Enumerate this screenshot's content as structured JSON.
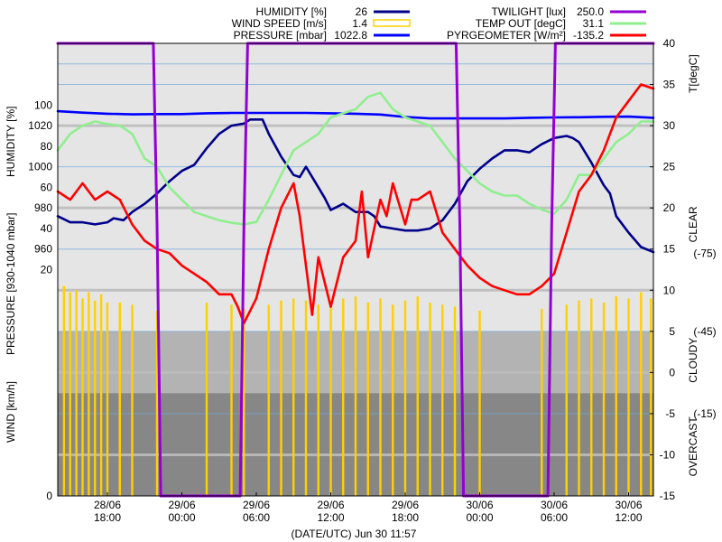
{
  "chart_data": {
    "type": "line",
    "legend": [
      {
        "label": "HUMIDITY [%]",
        "value": "26",
        "color": "#00008b",
        "style": "line"
      },
      {
        "label": "WIND SPEED [m/s]",
        "value": "1.4",
        "color": "#ffd000",
        "style": "box"
      },
      {
        "label": "PRESSURE [mbar]",
        "value": "1022.8",
        "color": "#0000ff",
        "style": "line"
      },
      {
        "label": "TWILIGHT [lux]",
        "value": "250.0",
        "color": "#9400d3",
        "style": "line"
      },
      {
        "label": "TEMP OUT [degC]",
        "value": "31.1",
        "color": "#90ee90",
        "style": "line"
      },
      {
        "label": "PYRGEOMETER [W/m²]",
        "value": "-135.2",
        "color": "#ff0000",
        "style": "line"
      }
    ],
    "left_axis_labels": {
      "humidity": "HUMIDITY [%]",
      "pressure": "PRESSURE [930-1040 mbar]",
      "wind": "WIND [km/h]"
    },
    "left_ticks": [
      {
        "label": "100",
        "row": 1.5
      },
      {
        "label": "1020",
        "row": 2
      },
      {
        "label": "80",
        "row": 2.5
      },
      {
        "label": "1000",
        "row": 3
      },
      {
        "label": "60",
        "row": 3.5
      },
      {
        "label": "980",
        "row": 4
      },
      {
        "label": "40",
        "row": 4.5
      },
      {
        "label": "960",
        "row": 5
      },
      {
        "label": "20",
        "row": 5.5
      },
      {
        "label": "0",
        "row": 6.5
      }
    ],
    "right_axis_label": "T[degC]",
    "temp_ylim": [
      -15,
      40
    ],
    "right_ticks": [
      "40",
      "35",
      "30",
      "25",
      "20",
      "15",
      "10",
      "5",
      "0",
      "-5",
      "-10",
      "-15"
    ],
    "sky_zones": [
      {
        "label": "CLEAR",
        "from": 13,
        "to": 40,
        "color": "#e5e5e5"
      },
      {
        "label": "CLOUDY",
        "from": -2.5,
        "to": 5,
        "color": "#b3b3b3"
      },
      {
        "label": "OVERCAST",
        "from": -15,
        "to": -2.5,
        "color": "#878787"
      }
    ],
    "pyr_ticks": [
      {
        "label": "(-75)",
        "temp": 14.5
      },
      {
        "label": "(-45)",
        "temp": 5
      },
      {
        "label": "(-15)",
        "temp": -5
      }
    ],
    "xlabel": "(DATE/UTC) Jun 30 11:57",
    "x_ticks": [
      {
        "date": "28/06",
        "time": "18:00",
        "hour": 18
      },
      {
        "date": "29/06",
        "time": "00:00",
        "hour": 24
      },
      {
        "date": "29/06",
        "time": "06:00",
        "hour": 30
      },
      {
        "date": "29/06",
        "time": "12:00",
        "hour": 36
      },
      {
        "date": "29/06",
        "time": "18:00",
        "hour": 42
      },
      {
        "date": "30/06",
        "time": "00:00",
        "hour": 48
      },
      {
        "date": "30/06",
        "time": "06:00",
        "hour": 54
      },
      {
        "date": "30/06",
        "time": "12:00",
        "hour": 60
      }
    ],
    "xlim": [
      14,
      62
    ],
    "units": {
      "x": "hours since 28/06 00:00 UTC",
      "humidity": "%",
      "pressure": "mbar",
      "temp": "degC",
      "twilight": "relative level 0-1",
      "wind": "km/h",
      "pyrgeometer": "W/m²"
    },
    "series": [
      {
        "name": "HUMIDITY [%]",
        "key": "humidity",
        "color": "#00008b",
        "points": [
          [
            14,
            46
          ],
          [
            15,
            43
          ],
          [
            16,
            43
          ],
          [
            17,
            42
          ],
          [
            18,
            43
          ],
          [
            18.5,
            45
          ],
          [
            19.3,
            44
          ],
          [
            20,
            48
          ],
          [
            21,
            52
          ],
          [
            22,
            57
          ],
          [
            23,
            63
          ],
          [
            24,
            68
          ],
          [
            25,
            71
          ],
          [
            26,
            79
          ],
          [
            27,
            86
          ],
          [
            28,
            90
          ],
          [
            29,
            91
          ],
          [
            29.5,
            93
          ],
          [
            30,
            93
          ],
          [
            30.5,
            93
          ],
          [
            31,
            86
          ],
          [
            32,
            75
          ],
          [
            33,
            66
          ],
          [
            33.5,
            65
          ],
          [
            34,
            70
          ],
          [
            35,
            60
          ],
          [
            35.5,
            55
          ],
          [
            36,
            49
          ],
          [
            37,
            52
          ],
          [
            38,
            48
          ],
          [
            39,
            48
          ],
          [
            39.5,
            46
          ],
          [
            40,
            41
          ],
          [
            41,
            40
          ],
          [
            42,
            39
          ],
          [
            43,
            39
          ],
          [
            44,
            40
          ],
          [
            45,
            44
          ],
          [
            46,
            52
          ],
          [
            47,
            63
          ],
          [
            48,
            69
          ],
          [
            49,
            74
          ],
          [
            50,
            78
          ],
          [
            51,
            78
          ],
          [
            52,
            77
          ],
          [
            53,
            81
          ],
          [
            54,
            84
          ],
          [
            55,
            85
          ],
          [
            55.5,
            84
          ],
          [
            56,
            82
          ],
          [
            57,
            72
          ],
          [
            58,
            61
          ],
          [
            58.5,
            57
          ],
          [
            59,
            46
          ],
          [
            60,
            38
          ],
          [
            61,
            31
          ],
          [
            62,
            28.5
          ]
        ]
      },
      {
        "name": "PRESSURE [mbar]",
        "key": "pressure",
        "color": "#0000ff",
        "points": [
          [
            14,
            1027
          ],
          [
            16,
            1026.3
          ],
          [
            18,
            1025.8
          ],
          [
            20,
            1025.5
          ],
          [
            22,
            1025.6
          ],
          [
            24,
            1025.6
          ],
          [
            26,
            1026
          ],
          [
            28,
            1026.2
          ],
          [
            30,
            1026.2
          ],
          [
            32,
            1026.2
          ],
          [
            34,
            1026.2
          ],
          [
            36,
            1026
          ],
          [
            38,
            1025.8
          ],
          [
            40,
            1025.4
          ],
          [
            42,
            1024.2
          ],
          [
            44,
            1023.5
          ],
          [
            46,
            1023.5
          ],
          [
            48,
            1023.5
          ],
          [
            50,
            1023.5
          ],
          [
            52,
            1023.8
          ],
          [
            54,
            1024
          ],
          [
            56,
            1024.1
          ],
          [
            58,
            1024.3
          ],
          [
            60,
            1024.4
          ],
          [
            62,
            1023.8
          ]
        ]
      },
      {
        "name": "TEMP OUT [degC]",
        "key": "temp",
        "color": "#90ee90",
        "points": [
          [
            14,
            27
          ],
          [
            15,
            29
          ],
          [
            16,
            30
          ],
          [
            17,
            30.5
          ],
          [
            18,
            30.2
          ],
          [
            19,
            30
          ],
          [
            20,
            29
          ],
          [
            21,
            26
          ],
          [
            22,
            25
          ],
          [
            23,
            22.5
          ],
          [
            24,
            21
          ],
          [
            25,
            19.5
          ],
          [
            26,
            19
          ],
          [
            27,
            18.5
          ],
          [
            28,
            18.2
          ],
          [
            29,
            18
          ],
          [
            30,
            18.3
          ],
          [
            31,
            21
          ],
          [
            32,
            24
          ],
          [
            33,
            27
          ],
          [
            34,
            28
          ],
          [
            35,
            29
          ],
          [
            36,
            31
          ],
          [
            37,
            31.5
          ],
          [
            38,
            32
          ],
          [
            39,
            33.5
          ],
          [
            40,
            34
          ],
          [
            41,
            32
          ],
          [
            42,
            31
          ],
          [
            43,
            30.5
          ],
          [
            44,
            30
          ],
          [
            45,
            28
          ],
          [
            46,
            26
          ],
          [
            47,
            24.5
          ],
          [
            48,
            23
          ],
          [
            49,
            22
          ],
          [
            50,
            21.5
          ],
          [
            51,
            21.5
          ],
          [
            52,
            20.5
          ],
          [
            53,
            19.8
          ],
          [
            54,
            19.3
          ],
          [
            55,
            21
          ],
          [
            56,
            24
          ],
          [
            57,
            24
          ],
          [
            58,
            26
          ],
          [
            59,
            28
          ],
          [
            60,
            29
          ],
          [
            61,
            30.5
          ],
          [
            62,
            30.5
          ]
        ]
      },
      {
        "name": "PYRGEOMETER [W/m²]",
        "key": "pyr",
        "color": "#ff0000",
        "points": [
          [
            14,
            22
          ],
          [
            15,
            21
          ],
          [
            16,
            23
          ],
          [
            17,
            21
          ],
          [
            18,
            22
          ],
          [
            19,
            21
          ],
          [
            20,
            18
          ],
          [
            21,
            16
          ],
          [
            22,
            15
          ],
          [
            23,
            14.5
          ],
          [
            24,
            13
          ],
          [
            25,
            12
          ],
          [
            26,
            11
          ],
          [
            27,
            9.5
          ],
          [
            28,
            9.5
          ],
          [
            28.5,
            8
          ],
          [
            29,
            6
          ],
          [
            30,
            9
          ],
          [
            31,
            15
          ],
          [
            32,
            20
          ],
          [
            33,
            23
          ],
          [
            33.5,
            19
          ],
          [
            34,
            13
          ],
          [
            34.5,
            7
          ],
          [
            35,
            14
          ],
          [
            36,
            8
          ],
          [
            37,
            14
          ],
          [
            38,
            16
          ],
          [
            38.5,
            22
          ],
          [
            39,
            14
          ],
          [
            40,
            21
          ],
          [
            40.5,
            19
          ],
          [
            41,
            23
          ],
          [
            42,
            18
          ],
          [
            42.5,
            21
          ],
          [
            43,
            21
          ],
          [
            44,
            22
          ],
          [
            45,
            17
          ],
          [
            46,
            15
          ],
          [
            47,
            13
          ],
          [
            48,
            11.5
          ],
          [
            49,
            10.5
          ],
          [
            50,
            10
          ],
          [
            51,
            9.5
          ],
          [
            52,
            9.5
          ],
          [
            53,
            10.5
          ],
          [
            54,
            12
          ],
          [
            55,
            17
          ],
          [
            56,
            22
          ],
          [
            57,
            24
          ],
          [
            58,
            27
          ],
          [
            59,
            31
          ],
          [
            60,
            33
          ],
          [
            61,
            35
          ],
          [
            62,
            34.5
          ]
        ]
      },
      {
        "name": "TWILIGHT [lux]",
        "key": "twilight",
        "color": "#9400d3",
        "points": [
          [
            14,
            1
          ],
          [
            21.7,
            1
          ],
          [
            22,
            0.6
          ],
          [
            22.3,
            0
          ],
          [
            28.7,
            0
          ],
          [
            29,
            0.6
          ],
          [
            29.3,
            1
          ],
          [
            46.1,
            1
          ],
          [
            46.4,
            0.6
          ],
          [
            46.7,
            0
          ],
          [
            53.5,
            0
          ],
          [
            53.8,
            0.6
          ],
          [
            54.1,
            1
          ],
          [
            62,
            1
          ]
        ]
      },
      {
        "name": "WIND SPEED [m/s]",
        "key": "wind",
        "color": "#ffd000",
        "bars": [
          [
            14.5,
            12
          ],
          [
            15,
            9
          ],
          [
            15.5,
            10
          ],
          [
            16,
            6
          ],
          [
            16.5,
            9
          ],
          [
            17,
            5
          ],
          [
            17.5,
            8
          ],
          [
            18,
            4
          ],
          [
            19,
            4
          ],
          [
            20,
            3
          ],
          [
            22,
            0
          ],
          [
            26,
            4
          ],
          [
            28,
            3
          ],
          [
            29,
            1
          ],
          [
            31,
            3
          ],
          [
            32,
            5
          ],
          [
            33,
            6
          ],
          [
            34,
            5
          ],
          [
            35,
            3
          ],
          [
            36,
            5
          ],
          [
            37,
            6
          ],
          [
            38,
            7
          ],
          [
            39,
            4
          ],
          [
            40,
            6
          ],
          [
            41,
            3
          ],
          [
            42,
            5
          ],
          [
            43,
            7
          ],
          [
            44,
            4
          ],
          [
            45,
            3
          ],
          [
            46,
            2
          ],
          [
            48,
            0
          ],
          [
            53,
            1
          ],
          [
            55,
            3
          ],
          [
            56,
            5
          ],
          [
            57,
            6
          ],
          [
            58,
            4
          ],
          [
            59,
            7
          ],
          [
            60,
            6
          ],
          [
            61,
            9
          ],
          [
            61.8,
            6
          ]
        ]
      }
    ]
  }
}
